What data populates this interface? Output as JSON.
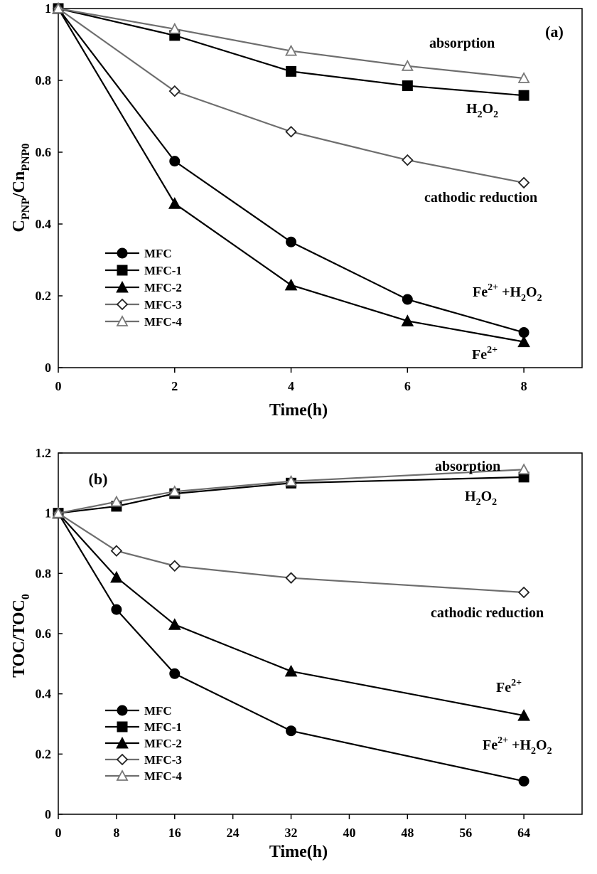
{
  "chart_data": [
    {
      "type": "line",
      "panel_label": "(a)",
      "xlabel": "Time(h)",
      "ylabel": {
        "base1": "C",
        "sub1": "PNP",
        "mid": "/Cn",
        "sub2": "PNP0"
      },
      "xlim": [
        0,
        9
      ],
      "ylim": [
        0,
        1
      ],
      "x_ticks": [
        0,
        2,
        4,
        6,
        8
      ],
      "y_ticks": [
        0,
        0.2,
        0.4,
        0.6,
        0.8,
        1
      ],
      "y_tick_labels": [
        "0",
        "0.2",
        "0.4",
        "0.6",
        "0.8",
        "1"
      ],
      "x": [
        0,
        2,
        4,
        6,
        8
      ],
      "legend_position": "lower-left",
      "series": [
        {
          "name": "MFC",
          "marker": "circle",
          "color": "#000000",
          "values": [
            1,
            0.575,
            0.35,
            0.19,
            0.098
          ]
        },
        {
          "name": "MFC-1",
          "marker": "square",
          "color": "#000000",
          "values": [
            1,
            0.925,
            0.825,
            0.785,
            0.758
          ]
        },
        {
          "name": "MFC-2",
          "marker": "triangle",
          "color": "#000000",
          "values": [
            1,
            0.457,
            0.23,
            0.13,
            0.072
          ]
        },
        {
          "name": "MFC-3",
          "marker": "diamond-open",
          "color": "#6e6e6e",
          "values": [
            1,
            0.77,
            0.657,
            0.578,
            0.515
          ]
        },
        {
          "name": "MFC-4",
          "marker": "triangle-open",
          "color": "#777777",
          "values": [
            1,
            0.943,
            0.882,
            0.84,
            0.806
          ]
        }
      ],
      "annotations": [
        {
          "id": "absorption",
          "parts": [
            [
              "absorption",
              ""
            ]
          ]
        },
        {
          "id": "h2o2",
          "parts": [
            [
              "H",
              ""
            ],
            [
              "2",
              "sub"
            ],
            [
              "O",
              ""
            ],
            [
              "2",
              "sub"
            ]
          ]
        },
        {
          "id": "cathodic",
          "parts": [
            [
              "cathodic reduction",
              ""
            ]
          ]
        },
        {
          "id": "fenton",
          "parts": [
            [
              "Fe",
              ""
            ],
            [
              "2+",
              "sup"
            ],
            [
              " +H",
              ""
            ],
            [
              "2",
              "sub"
            ],
            [
              "O",
              ""
            ],
            [
              "2",
              "sub"
            ]
          ]
        },
        {
          "id": "fe",
          "parts": [
            [
              "Fe",
              ""
            ],
            [
              "2+",
              "sup"
            ]
          ]
        }
      ]
    },
    {
      "type": "line",
      "panel_label": "(b)",
      "xlabel": "Time(h)",
      "ylabel": {
        "base1": "TOC/TOC",
        "sub1": "0",
        "mid": "",
        "sub2": ""
      },
      "xlim": [
        0,
        72
      ],
      "ylim": [
        0,
        1.2
      ],
      "x_ticks": [
        0,
        8,
        16,
        24,
        32,
        40,
        48,
        56,
        64
      ],
      "y_ticks": [
        0,
        0.2,
        0.4,
        0.6,
        0.8,
        1,
        1.2
      ],
      "y_tick_labels": [
        "0",
        "0.2",
        "0.4",
        "0.6",
        "0.8",
        "1",
        "1.2"
      ],
      "x": [
        0,
        8,
        16,
        32,
        64
      ],
      "legend_position": "lower-left",
      "series": [
        {
          "name": "MFC",
          "marker": "circle",
          "color": "#000000",
          "values": [
            1,
            0.68,
            0.467,
            0.277,
            0.11
          ]
        },
        {
          "name": "MFC-1",
          "marker": "square",
          "color": "#000000",
          "values": [
            1,
            1.023,
            1.065,
            1.1,
            1.12
          ]
        },
        {
          "name": "MFC-2",
          "marker": "triangle",
          "color": "#000000",
          "values": [
            1,
            0.787,
            0.63,
            0.475,
            0.328
          ]
        },
        {
          "name": "MFC-3",
          "marker": "diamond-open",
          "color": "#6e6e6e",
          "values": [
            1,
            0.875,
            0.825,
            0.785,
            0.737
          ]
        },
        {
          "name": "MFC-4",
          "marker": "triangle-open",
          "color": "#777777",
          "values": [
            1,
            1.038,
            1.072,
            1.106,
            1.145
          ]
        }
      ],
      "annotations": [
        {
          "id": "absorption",
          "parts": [
            [
              "absorption",
              ""
            ]
          ]
        },
        {
          "id": "h2o2",
          "parts": [
            [
              "H",
              ""
            ],
            [
              "2",
              "sub"
            ],
            [
              "O",
              ""
            ],
            [
              "2",
              "sub"
            ]
          ]
        },
        {
          "id": "cathodic",
          "parts": [
            [
              "cathodic  reduction",
              ""
            ]
          ]
        },
        {
          "id": "fe",
          "parts": [
            [
              "Fe",
              ""
            ],
            [
              "2+",
              "sup"
            ]
          ]
        },
        {
          "id": "fenton",
          "parts": [
            [
              "Fe",
              ""
            ],
            [
              "2+",
              "sup"
            ],
            [
              " +H",
              ""
            ],
            [
              "2",
              "sub"
            ],
            [
              "O",
              ""
            ],
            [
              "2",
              "sub"
            ]
          ]
        }
      ]
    }
  ]
}
